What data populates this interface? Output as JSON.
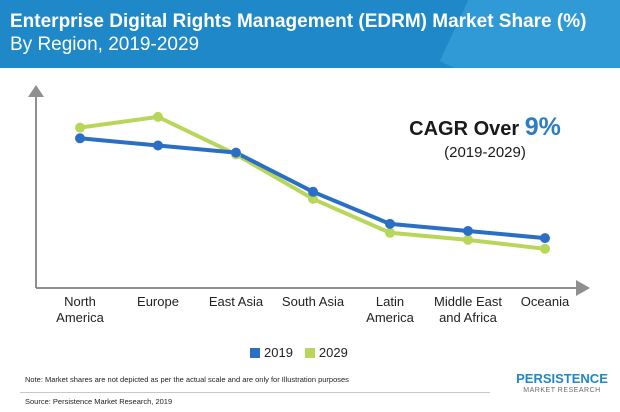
{
  "header": {
    "title_line1": "Enterprise Digital Rights Management (EDRM) Market Share (%)",
    "title_line2": "By Region, 2019-2029"
  },
  "cagr": {
    "prefix": "CAGR Over ",
    "value": "9%",
    "period": "(2019-2029)"
  },
  "chart_data": {
    "type": "line",
    "title": "Enterprise Digital Rights Management (EDRM) Market Share (%) By Region, 2019-2029",
    "categories": [
      "North\nAmerica",
      "Europe",
      "East Asia",
      "South Asia",
      "Latin\nAmerica",
      "Middle East\nand Africa",
      "Oceania"
    ],
    "series": [
      {
        "name": "2019",
        "color": "#2b6fc4",
        "values": [
          8.2,
          8.0,
          7.8,
          6.7,
          5.8,
          5.6,
          5.4
        ]
      },
      {
        "name": "2029",
        "color": "#b7d65a",
        "values": [
          8.5,
          8.8,
          7.75,
          6.5,
          5.55,
          5.35,
          5.1
        ]
      }
    ],
    "ylim": [
      4.0,
      9.5
    ],
    "xlabel": "",
    "ylabel": "",
    "grid": false,
    "legend": "bottom-center"
  },
  "legend": {
    "items": [
      {
        "label": "2019",
        "color": "#2b6fc4"
      },
      {
        "label": "2029",
        "color": "#b7d65a"
      }
    ]
  },
  "footer": {
    "note": "Note: Market shares are not depicted as per the actual scale and are only for Illustration purposes",
    "source": "Source: Persistence Market Research, 2019",
    "logo_name": "PERSISTENCE",
    "logo_sub": "MARKET RESEARCH"
  }
}
